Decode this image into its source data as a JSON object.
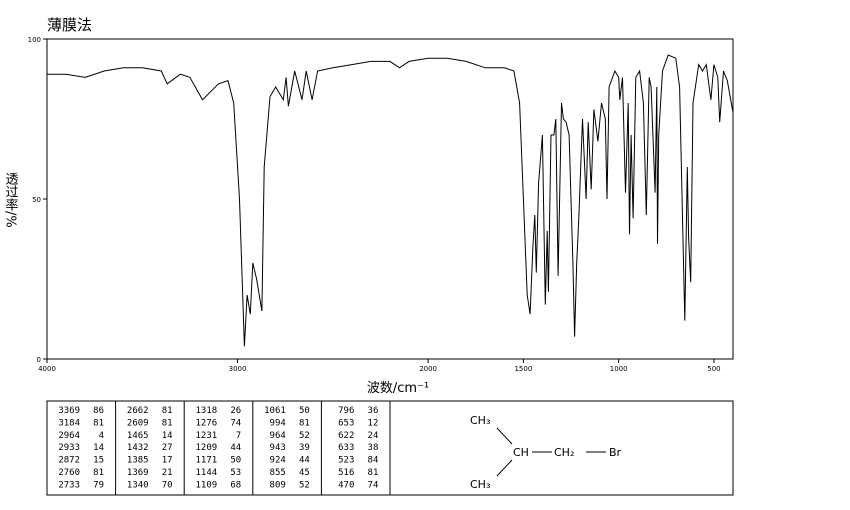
{
  "chart_data": {
    "type": "line",
    "title": "薄膜法",
    "xlabel": "波数/cm⁻¹",
    "ylabel": "透过率/%",
    "xlim": [
      4000,
      400
    ],
    "xticks": [
      4000,
      3000,
      2000,
      1500,
      1000,
      500
    ],
    "ylim": [
      0,
      100
    ],
    "yticks": [
      0,
      50,
      100
    ],
    "x": [
      4000,
      3900,
      3800,
      3700,
      3600,
      3500,
      3400,
      3369,
      3300,
      3250,
      3184,
      3100,
      3050,
      3020,
      2990,
      2964,
      2950,
      2933,
      2920,
      2900,
      2872,
      2860,
      2830,
      2800,
      2760,
      2745,
      2733,
      2700,
      2662,
      2640,
      2609,
      2580,
      2500,
      2400,
      2300,
      2200,
      2150,
      2100,
      2000,
      1900,
      1800,
      1700,
      1600,
      1550,
      1520,
      1500,
      1480,
      1465,
      1450,
      1440,
      1432,
      1420,
      1400,
      1385,
      1375,
      1369,
      1355,
      1340,
      1330,
      1318,
      1300,
      1290,
      1276,
      1260,
      1240,
      1231,
      1220,
      1209,
      1190,
      1171,
      1160,
      1144,
      1130,
      1109,
      1090,
      1070,
      1061,
      1050,
      1020,
      1000,
      994,
      980,
      964,
      950,
      943,
      935,
      924,
      910,
      890,
      870,
      855,
      840,
      830,
      809,
      800,
      796,
      790,
      770,
      740,
      700,
      680,
      653,
      640,
      633,
      622,
      610,
      580,
      560,
      540,
      523,
      516,
      500,
      480,
      470,
      450,
      430,
      400
    ],
    "series": [
      {
        "color": "#000000",
        "values": [
          89,
          89,
          88,
          90,
          91,
          91,
          90,
          86,
          89,
          88,
          81,
          86,
          87,
          80,
          50,
          4,
          20,
          14,
          30,
          25,
          15,
          60,
          82,
          85,
          81,
          88,
          79,
          90,
          81,
          90,
          81,
          90,
          91,
          92,
          93,
          93,
          91,
          93,
          94,
          94,
          93,
          91,
          91,
          90,
          80,
          50,
          20,
          14,
          35,
          45,
          27,
          55,
          70,
          17,
          40,
          21,
          70,
          70,
          75,
          26,
          80,
          75,
          74,
          70,
          30,
          7,
          30,
          44,
          75,
          50,
          74,
          53,
          78,
          68,
          80,
          75,
          50,
          85,
          90,
          88,
          81,
          88,
          52,
          80,
          39,
          70,
          44,
          88,
          90,
          80,
          45,
          88,
          85,
          52,
          85,
          36,
          70,
          90,
          95,
          94,
          85,
          12,
          60,
          38,
          24,
          80,
          92,
          90,
          92,
          84,
          81,
          92,
          88,
          74,
          90,
          87,
          77
        ]
      }
    ]
  },
  "peak_table": {
    "peaks": [
      [
        3369,
        86
      ],
      [
        3184,
        81
      ],
      [
        2964,
        4
      ],
      [
        2933,
        14
      ],
      [
        2872,
        15
      ],
      [
        2760,
        81
      ],
      [
        2733,
        79
      ],
      [
        2662,
        81
      ],
      [
        2609,
        81
      ],
      [
        1465,
        14
      ],
      [
        1432,
        27
      ],
      [
        1385,
        17
      ],
      [
        1369,
        21
      ],
      [
        1340,
        70
      ],
      [
        1318,
        26
      ],
      [
        1276,
        74
      ],
      [
        1231,
        7
      ],
      [
        1209,
        44
      ],
      [
        1171,
        50
      ],
      [
        1144,
        53
      ],
      [
        1109,
        68
      ],
      [
        1061,
        50
      ],
      [
        994,
        81
      ],
      [
        964,
        52
      ],
      [
        943,
        39
      ],
      [
        924,
        44
      ],
      [
        855,
        45
      ],
      [
        809,
        52
      ],
      [
        796,
        36
      ],
      [
        653,
        12
      ],
      [
        622,
        24
      ],
      [
        633,
        38
      ],
      [
        523,
        84
      ],
      [
        516,
        81
      ],
      [
        470,
        74
      ]
    ]
  },
  "structure": {
    "labels": [
      "CH₃",
      "CH",
      "CH₂",
      "Br",
      "CH₃"
    ]
  }
}
